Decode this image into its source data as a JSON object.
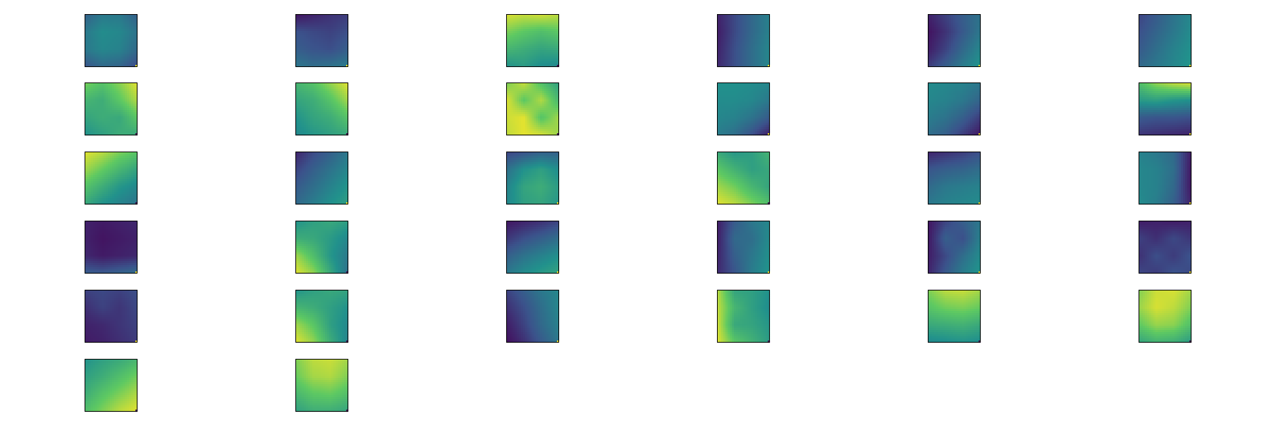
{
  "chart_data": {
    "type": "heatmap",
    "layout": {
      "rows": 6,
      "cols": 6,
      "panel_count": 32
    },
    "colormap": [
      "#440154",
      "#3b528b",
      "#21918c",
      "#5ec962",
      "#fde725"
    ],
    "axes_ticks": false,
    "panels": [
      {
        "grid": [
          [
            0.3,
            0.4,
            0.4,
            0.3
          ],
          [
            0.4,
            0.48,
            0.46,
            0.38
          ],
          [
            0.4,
            0.46,
            0.44,
            0.34
          ],
          [
            0.26,
            0.34,
            0.32,
            0.22
          ]
        ],
        "marker": 1.0
      },
      {
        "grid": [
          [
            0.05,
            0.1,
            0.15,
            0.18
          ],
          [
            0.25,
            0.22,
            0.2,
            0.24
          ],
          [
            0.3,
            0.26,
            0.24,
            0.3
          ],
          [
            0.4,
            0.36,
            0.38,
            0.42
          ]
        ],
        "marker": 1.0
      },
      {
        "grid": [
          [
            0.95,
            0.92,
            0.94,
            0.9
          ],
          [
            0.8,
            0.74,
            0.7,
            0.74
          ],
          [
            0.66,
            0.62,
            0.58,
            0.6
          ],
          [
            0.5,
            0.54,
            0.48,
            0.46
          ]
        ],
        "marker": 0.0
      },
      {
        "grid": [
          [
            0.1,
            0.22,
            0.34,
            0.44
          ],
          [
            0.08,
            0.22,
            0.34,
            0.44
          ],
          [
            0.1,
            0.24,
            0.36,
            0.46
          ],
          [
            0.12,
            0.24,
            0.36,
            0.46
          ]
        ],
        "marker": 1.0
      },
      {
        "grid": [
          [
            0.1,
            0.2,
            0.3,
            0.38
          ],
          [
            0.05,
            0.15,
            0.28,
            0.4
          ],
          [
            0.08,
            0.2,
            0.34,
            0.46
          ],
          [
            0.18,
            0.3,
            0.42,
            0.52
          ]
        ],
        "marker": 1.0
      },
      {
        "grid": [
          [
            0.2,
            0.28,
            0.38,
            0.46
          ],
          [
            0.24,
            0.32,
            0.4,
            0.48
          ],
          [
            0.28,
            0.36,
            0.44,
            0.5
          ],
          [
            0.34,
            0.4,
            0.46,
            0.52
          ]
        ],
        "marker": 1.0
      },
      {
        "grid": [
          [
            0.8,
            0.72,
            0.82,
            0.96
          ],
          [
            0.66,
            0.62,
            0.74,
            0.88
          ],
          [
            0.58,
            0.62,
            0.6,
            0.74
          ],
          [
            0.5,
            0.56,
            0.62,
            0.6
          ]
        ],
        "marker": 0.0
      },
      {
        "grid": [
          [
            0.66,
            0.72,
            0.84,
            0.96
          ],
          [
            0.58,
            0.62,
            0.72,
            0.86
          ],
          [
            0.5,
            0.58,
            0.62,
            0.72
          ],
          [
            0.46,
            0.52,
            0.56,
            0.6
          ]
        ],
        "marker": 0.0
      },
      {
        "grid": [
          [
            0.78,
            0.92,
            0.7,
            0.56
          ],
          [
            0.96,
            0.74,
            0.88,
            0.66
          ],
          [
            0.92,
            0.96,
            0.72,
            0.86
          ],
          [
            0.9,
            0.96,
            0.94,
            0.84
          ]
        ],
        "marker": 0.0
      },
      {
        "grid": [
          [
            0.5,
            0.5,
            0.48,
            0.46
          ],
          [
            0.48,
            0.48,
            0.46,
            0.4
          ],
          [
            0.46,
            0.44,
            0.38,
            0.28
          ],
          [
            0.42,
            0.36,
            0.24,
            0.08
          ]
        ],
        "marker": 1.0
      },
      {
        "grid": [
          [
            0.48,
            0.46,
            0.44,
            0.4
          ],
          [
            0.46,
            0.44,
            0.4,
            0.32
          ],
          [
            0.42,
            0.38,
            0.3,
            0.18
          ],
          [
            0.36,
            0.3,
            0.18,
            0.06
          ]
        ],
        "marker": 1.0
      },
      {
        "grid": [
          [
            0.7,
            0.84,
            0.92,
            0.96
          ],
          [
            0.54,
            0.56,
            0.52,
            0.5
          ],
          [
            0.28,
            0.26,
            0.26,
            0.24
          ],
          [
            0.16,
            0.14,
            0.12,
            0.1
          ]
        ],
        "marker": 1.0
      },
      {
        "grid": [
          [
            0.96,
            0.9,
            0.8,
            0.74
          ],
          [
            0.86,
            0.76,
            0.66,
            0.58
          ],
          [
            0.72,
            0.62,
            0.52,
            0.46
          ],
          [
            0.6,
            0.5,
            0.44,
            0.38
          ]
        ],
        "marker": 0.0
      },
      {
        "grid": [
          [
            0.1,
            0.22,
            0.3,
            0.4
          ],
          [
            0.2,
            0.3,
            0.38,
            0.46
          ],
          [
            0.28,
            0.36,
            0.44,
            0.52
          ],
          [
            0.34,
            0.42,
            0.5,
            0.56
          ]
        ],
        "marker": 1.0
      },
      {
        "grid": [
          [
            0.2,
            0.24,
            0.3,
            0.3
          ],
          [
            0.36,
            0.5,
            0.56,
            0.48
          ],
          [
            0.44,
            0.58,
            0.62,
            0.54
          ],
          [
            0.46,
            0.56,
            0.58,
            0.52
          ]
        ],
        "marker": 1.0
      },
      {
        "grid": [
          [
            0.6,
            0.52,
            0.56,
            0.66
          ],
          [
            0.74,
            0.64,
            0.56,
            0.6
          ],
          [
            0.86,
            0.78,
            0.66,
            0.58
          ],
          [
            0.96,
            0.9,
            0.8,
            0.7
          ]
        ],
        "marker": 0.0
      },
      {
        "grid": [
          [
            0.1,
            0.14,
            0.18,
            0.24
          ],
          [
            0.26,
            0.3,
            0.32,
            0.36
          ],
          [
            0.34,
            0.4,
            0.42,
            0.44
          ],
          [
            0.4,
            0.44,
            0.46,
            0.48
          ]
        ],
        "marker": 1.0
      },
      {
        "grid": [
          [
            0.44,
            0.4,
            0.34,
            0.08
          ],
          [
            0.46,
            0.44,
            0.36,
            0.06
          ],
          [
            0.46,
            0.44,
            0.34,
            0.06
          ],
          [
            0.48,
            0.42,
            0.3,
            0.1
          ]
        ],
        "marker": 1.0
      },
      {
        "grid": [
          [
            0.1,
            0.08,
            0.1,
            0.12
          ],
          [
            0.1,
            0.06,
            0.08,
            0.1
          ],
          [
            0.12,
            0.08,
            0.1,
            0.12
          ],
          [
            0.3,
            0.28,
            0.32,
            0.36
          ]
        ],
        "marker": 1.0
      },
      {
        "grid": [
          [
            0.5,
            0.56,
            0.6,
            0.56
          ],
          [
            0.62,
            0.6,
            0.54,
            0.46
          ],
          [
            0.86,
            0.7,
            0.52,
            0.4
          ],
          [
            0.96,
            0.84,
            0.6,
            0.36
          ]
        ],
        "marker": 0.0
      },
      {
        "grid": [
          [
            0.06,
            0.1,
            0.14,
            0.2
          ],
          [
            0.16,
            0.24,
            0.3,
            0.36
          ],
          [
            0.3,
            0.38,
            0.44,
            0.5
          ],
          [
            0.4,
            0.48,
            0.54,
            0.58
          ]
        ],
        "marker": 1.0
      },
      {
        "grid": [
          [
            0.08,
            0.28,
            0.4,
            0.46
          ],
          [
            0.08,
            0.34,
            0.36,
            0.48
          ],
          [
            0.1,
            0.3,
            0.4,
            0.5
          ],
          [
            0.12,
            0.26,
            0.42,
            0.52
          ]
        ],
        "marker": 1.0
      },
      {
        "grid": [
          [
            0.06,
            0.2,
            0.3,
            0.4
          ],
          [
            0.06,
            0.3,
            0.24,
            0.44
          ],
          [
            0.08,
            0.22,
            0.36,
            0.48
          ],
          [
            0.1,
            0.28,
            0.42,
            0.52
          ]
        ],
        "marker": 1.0
      },
      {
        "grid": [
          [
            0.08,
            0.1,
            0.08,
            0.1
          ],
          [
            0.2,
            0.14,
            0.22,
            0.16
          ],
          [
            0.14,
            0.24,
            0.18,
            0.26
          ],
          [
            0.22,
            0.18,
            0.26,
            0.22
          ]
        ],
        "marker": 1.0
      },
      {
        "grid": [
          [
            0.2,
            0.22,
            0.2,
            0.24
          ],
          [
            0.14,
            0.2,
            0.16,
            0.22
          ],
          [
            0.1,
            0.12,
            0.16,
            0.2
          ],
          [
            0.08,
            0.1,
            0.14,
            0.18
          ]
        ],
        "marker": 1.0
      },
      {
        "grid": [
          [
            0.5,
            0.56,
            0.6,
            0.58
          ],
          [
            0.66,
            0.62,
            0.56,
            0.5
          ],
          [
            0.86,
            0.74,
            0.56,
            0.46
          ],
          [
            0.96,
            0.84,
            0.62,
            0.44
          ]
        ],
        "marker": 0.0
      },
      {
        "grid": [
          [
            0.2,
            0.3,
            0.4,
            0.46
          ],
          [
            0.14,
            0.24,
            0.36,
            0.46
          ],
          [
            0.08,
            0.2,
            0.34,
            0.44
          ],
          [
            0.04,
            0.14,
            0.28,
            0.4
          ]
        ],
        "marker": 1.0
      },
      {
        "grid": [
          [
            0.9,
            0.58,
            0.56,
            0.5
          ],
          [
            0.92,
            0.66,
            0.56,
            0.48
          ],
          [
            0.94,
            0.6,
            0.58,
            0.52
          ],
          [
            0.96,
            0.74,
            0.64,
            0.54
          ]
        ],
        "marker": 0.0
      },
      {
        "grid": [
          [
            0.8,
            0.9,
            0.92,
            0.86
          ],
          [
            0.72,
            0.78,
            0.8,
            0.76
          ],
          [
            0.6,
            0.62,
            0.64,
            0.6
          ],
          [
            0.46,
            0.48,
            0.5,
            0.48
          ]
        ],
        "marker": 0.0
      },
      {
        "grid": [
          [
            0.8,
            0.92,
            0.94,
            0.86
          ],
          [
            0.84,
            0.94,
            0.9,
            0.8
          ],
          [
            0.74,
            0.84,
            0.82,
            0.7
          ],
          [
            0.58,
            0.64,
            0.62,
            0.54
          ]
        ],
        "marker": 0.0
      },
      {
        "grid": [
          [
            0.5,
            0.56,
            0.6,
            0.66
          ],
          [
            0.56,
            0.62,
            0.7,
            0.78
          ],
          [
            0.62,
            0.72,
            0.8,
            0.88
          ],
          [
            0.7,
            0.8,
            0.9,
            0.96
          ]
        ],
        "marker": 0.0
      },
      {
        "grid": [
          [
            0.8,
            0.9,
            0.92,
            0.86
          ],
          [
            0.76,
            0.86,
            0.88,
            0.8
          ],
          [
            0.66,
            0.74,
            0.76,
            0.7
          ],
          [
            0.56,
            0.62,
            0.62,
            0.58
          ]
        ],
        "marker": 0.0
      }
    ]
  }
}
